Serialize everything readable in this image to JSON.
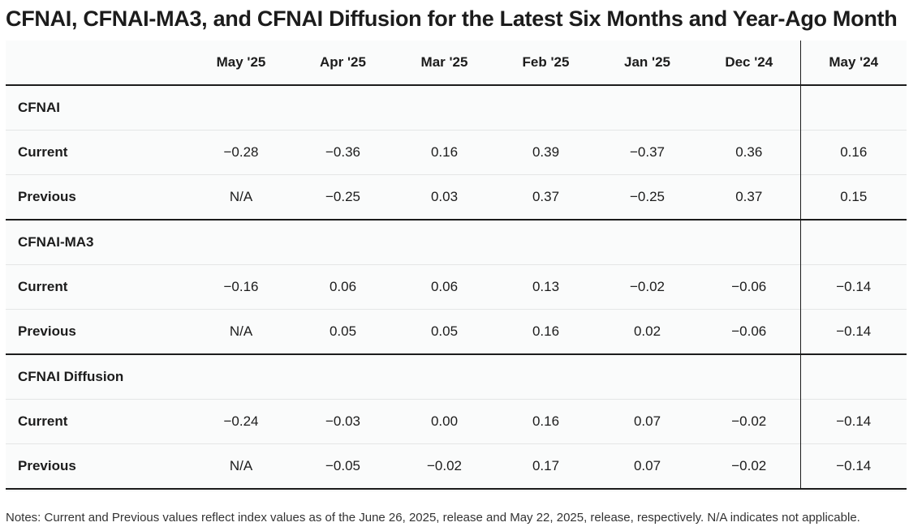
{
  "title": "CFNAI, CFNAI-MA3, and CFNAI Diffusion for the Latest Six Months and Year-Ago Month",
  "columns": [
    "May '25",
    "Apr '25",
    "Mar '25",
    "Feb '25",
    "Jan '25",
    "Dec '24",
    "May '24"
  ],
  "groups": [
    {
      "name": "CFNAI",
      "rows": [
        {
          "label": "Current",
          "values": [
            "−0.28",
            "−0.36",
            "0.16",
            "0.39",
            "−0.37",
            "0.36",
            "0.16"
          ]
        },
        {
          "label": "Previous",
          "values": [
            "N/A",
            "−0.25",
            "0.03",
            "0.37",
            "−0.25",
            "0.37",
            "0.15"
          ]
        }
      ]
    },
    {
      "name": "CFNAI-MA3",
      "rows": [
        {
          "label": "Current",
          "values": [
            "−0.16",
            "0.06",
            "0.06",
            "0.13",
            "−0.02",
            "−0.06",
            "−0.14"
          ]
        },
        {
          "label": "Previous",
          "values": [
            "N/A",
            "0.05",
            "0.05",
            "0.16",
            "0.02",
            "−0.06",
            "−0.14"
          ]
        }
      ]
    },
    {
      "name": "CFNAI Diffusion",
      "rows": [
        {
          "label": "Current",
          "values": [
            "−0.24",
            "−0.03",
            "0.00",
            "0.16",
            "0.07",
            "−0.02",
            "−0.14"
          ]
        },
        {
          "label": "Previous",
          "values": [
            "N/A",
            "−0.05",
            "−0.02",
            "0.17",
            "0.07",
            "−0.02",
            "−0.14"
          ]
        }
      ]
    }
  ],
  "note": "Notes: Current and Previous values reflect index values as of the June 26, 2025, release and May 22, 2025, release, respectively. N/A indicates not applicable.",
  "chart_data": {
    "type": "table",
    "title": "CFNAI, CFNAI-MA3, and CFNAI Diffusion for the Latest Six Months and Year-Ago Month",
    "columns": [
      "May '25",
      "Apr '25",
      "Mar '25",
      "Feb '25",
      "Jan '25",
      "Dec '24",
      "May '24"
    ],
    "series": [
      {
        "name": "CFNAI Current",
        "values": [
          -0.28,
          -0.36,
          0.16,
          0.39,
          -0.37,
          0.36,
          0.16
        ]
      },
      {
        "name": "CFNAI Previous",
        "values": [
          null,
          -0.25,
          0.03,
          0.37,
          -0.25,
          0.37,
          0.15
        ]
      },
      {
        "name": "CFNAI-MA3 Current",
        "values": [
          -0.16,
          0.06,
          0.06,
          0.13,
          -0.02,
          -0.06,
          -0.14
        ]
      },
      {
        "name": "CFNAI-MA3 Previous",
        "values": [
          null,
          0.05,
          0.05,
          0.16,
          0.02,
          -0.06,
          -0.14
        ]
      },
      {
        "name": "CFNAI Diffusion Current",
        "values": [
          -0.24,
          -0.03,
          0.0,
          0.16,
          0.07,
          -0.02,
          -0.14
        ]
      },
      {
        "name": "CFNAI Diffusion Previous",
        "values": [
          null,
          -0.05,
          -0.02,
          0.17,
          0.07,
          -0.02,
          -0.14
        ]
      }
    ]
  }
}
